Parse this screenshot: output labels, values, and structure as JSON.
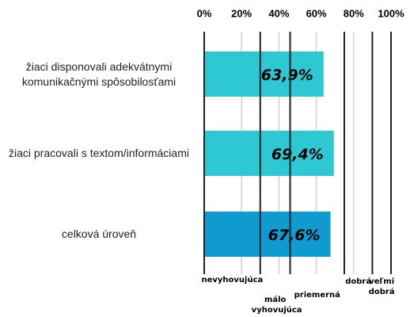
{
  "chart_data": {
    "type": "bar",
    "orientation": "horizontal",
    "categories": [
      "žiaci disponovali adekvátnymi komunikačnými spôsobilosťami",
      "žiaci pracovali s textom/informáciami",
      "celková úroveň"
    ],
    "values": [
      63.9,
      69.4,
      67.6
    ],
    "value_labels": [
      "63,9%",
      "69,4%",
      "67,6%"
    ],
    "colors": [
      "#2ec8d2",
      "#2ec8d2",
      "#0f9ad0"
    ],
    "xlim": [
      0,
      100
    ],
    "xticks": [
      {
        "value": 0,
        "label": "0%"
      },
      {
        "value": 20,
        "label": "20%"
      },
      {
        "value": 40,
        "label": "40%"
      },
      {
        "value": 60,
        "label": "60%"
      },
      {
        "value": 80,
        "label": "80%"
      },
      {
        "value": 100,
        "label": "100%"
      }
    ],
    "grid": true,
    "thresholds": [
      0,
      30,
      46,
      75,
      90,
      100
    ],
    "bands": [
      "nevyhovujúca",
      "málo vyhovujúca",
      "priemerná",
      "dobrá",
      "veľmi dobrá"
    ]
  }
}
